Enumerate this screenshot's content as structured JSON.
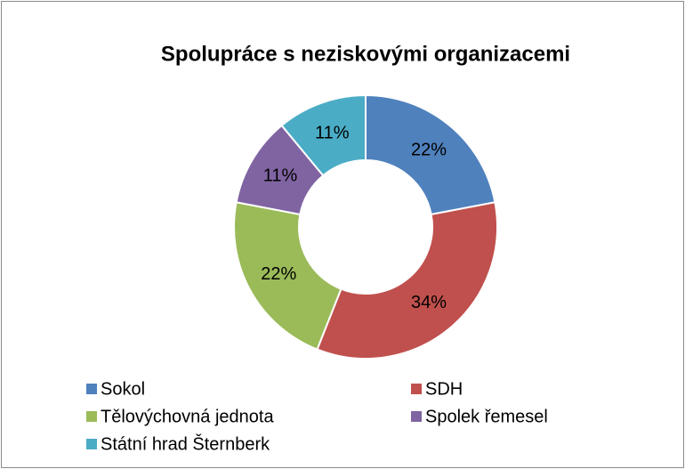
{
  "chart_data": {
    "type": "donut",
    "title": "Spolupráce s neziskovými organizacemi",
    "categories": [
      "Sokol",
      "SDH",
      "Tělovýchovná jednota",
      "Spolek řemesel",
      "Státní hrad Šternberk"
    ],
    "values": [
      22,
      34,
      22,
      11,
      11
    ],
    "value_labels": [
      "22%",
      "34%",
      "22%",
      "11%",
      "11%"
    ],
    "colors": [
      "#4f81bd",
      "#c0504d",
      "#9bbb59",
      "#8064a2",
      "#4bacc6"
    ],
    "legend": "bottom"
  }
}
